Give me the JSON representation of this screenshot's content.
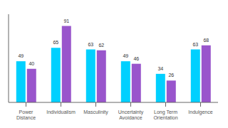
{
  "chart_data": {
    "type": "bar",
    "categories": [
      "Power\nDistance",
      "Individualism",
      "Masculinity",
      "Uncertainty\nAvoidance",
      "Long Term\nOrientation",
      "Indulgence"
    ],
    "series": [
      {
        "color": "#00d0ff",
        "values": [
          49,
          65,
          63,
          49,
          34,
          63
        ]
      },
      {
        "color": "#9955cc",
        "values": [
          40,
          91,
          62,
          46,
          26,
          68
        ]
      }
    ],
    "ylim": [
      0,
      105
    ],
    "data_labels": true,
    "tick_labels": "x",
    "grid": false
  }
}
